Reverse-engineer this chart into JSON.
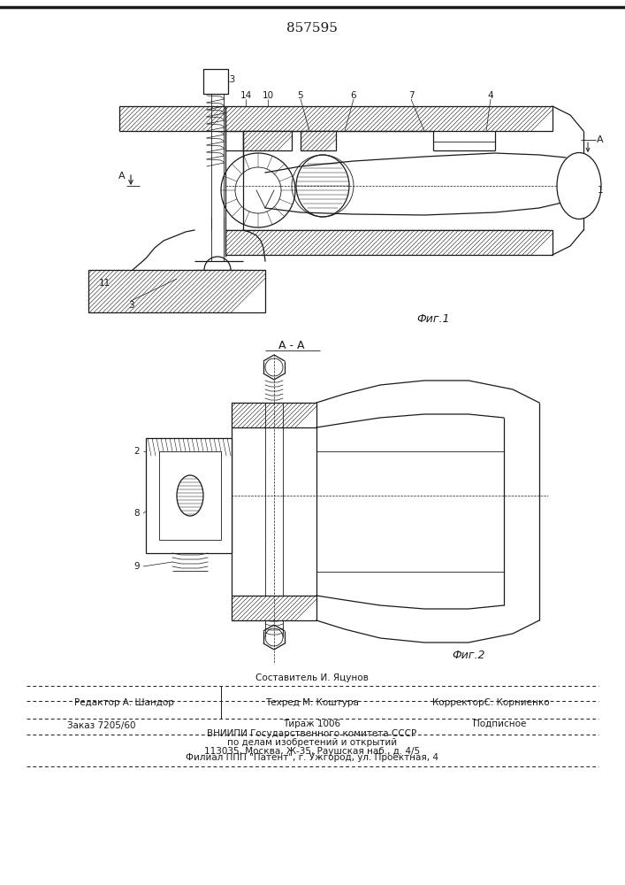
{
  "patent_number": "857595",
  "fig1_label": "Фиг.1",
  "fig2_label": "Фиг.2",
  "section_label": "А - А",
  "editor_line": "Редактор А. Шандор",
  "composer_line": "Составитель И. Яцунов",
  "techred_line": "Техред М. Коштура",
  "corrector_line": "КорректорС. Корниенко",
  "order_line": "Заказ 7205/60",
  "circulation_line": "Тираж 1006",
  "subscription_line": "Подписное",
  "institute_line1": "ВНИИПИ Государственного комитета СССР",
  "institute_line2": "по делам изобретений и открытий",
  "institute_line3": "113035, Москва, Ж-35, Раушская наб., д. 4/5",
  "filial_line": "Филиал ППП \"Патент\", г. Ужгород, ул. Проектная, 4",
  "bg_color": "#ffffff",
  "dc": "#1a1a1a"
}
